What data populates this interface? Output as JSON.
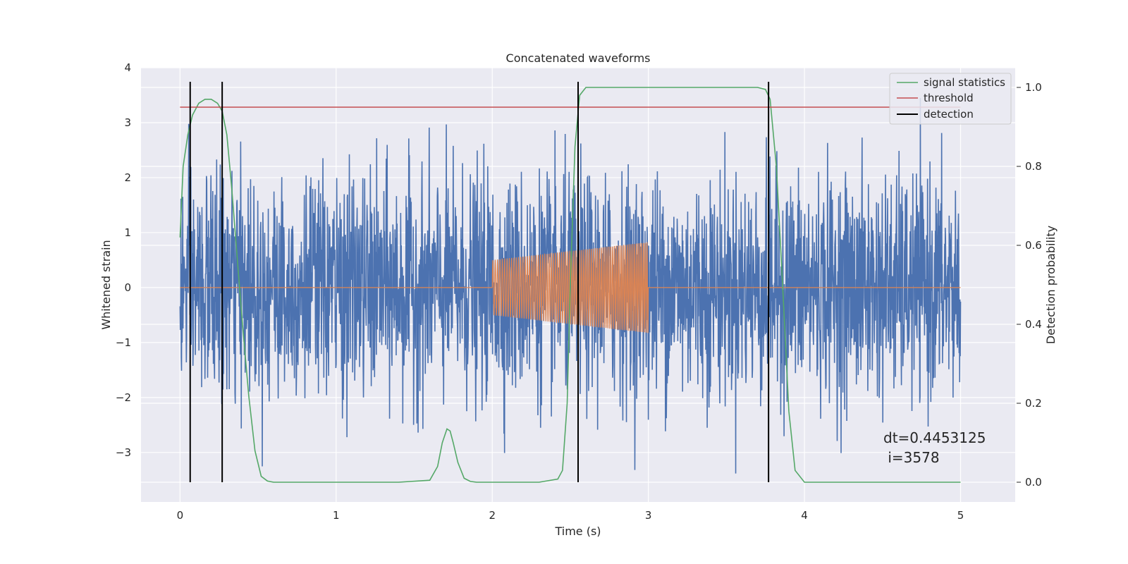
{
  "chart_data": {
    "type": "line",
    "title": "Concatenated waveforms",
    "xlabel": "Time (s)",
    "ylabel": "Whitened strain",
    "y2label": "Detection probability",
    "xlim": [
      -0.25,
      5.35
    ],
    "ylim": [
      -3.9,
      4.0
    ],
    "y2lim": [
      -0.05,
      1.05
    ],
    "x_ticks": [
      "0",
      "1",
      "2",
      "3",
      "4",
      "5"
    ],
    "y_ticks": [
      "−3",
      "−2",
      "−1",
      "0",
      "1",
      "2",
      "3",
      "4"
    ],
    "y2_ticks": [
      "0.0",
      "0.2",
      "0.4",
      "0.6",
      "0.8",
      "1.0"
    ],
    "grid": true,
    "legend_position": "top-right",
    "colors": {
      "noise": "#4c72b0",
      "injection": "#dd8452",
      "signal_statistics": "#55a868",
      "threshold": "#c44e52",
      "detection": "#000000",
      "background": "#eaeaf2",
      "grid": "#ffffff"
    },
    "series": [
      {
        "name": "",
        "axis": "left",
        "kind": "whitened noise",
        "x_range": [
          0,
          5
        ],
        "typical_amplitude": 1.0,
        "peak_max": 3.45,
        "peak_min": -3.6
      },
      {
        "name": "",
        "axis": "left",
        "kind": "injected chirp",
        "x_range": [
          2,
          3
        ],
        "start_amplitude": 0.5,
        "end_amplitude": 0.83
      },
      {
        "name": "signal statistics",
        "axis": "right",
        "x": [
          0.0,
          0.02,
          0.05,
          0.08,
          0.12,
          0.16,
          0.2,
          0.24,
          0.27,
          0.3,
          0.33,
          0.36,
          0.4,
          0.44,
          0.48,
          0.52,
          0.56,
          0.6,
          1.0,
          1.4,
          1.6,
          1.65,
          1.68,
          1.71,
          1.73,
          1.75,
          1.78,
          1.82,
          1.86,
          1.9,
          2.0,
          2.3,
          2.42,
          2.45,
          2.48,
          2.5,
          2.53,
          2.56,
          2.6,
          2.7,
          3.0,
          3.5,
          3.7,
          3.75,
          3.78,
          3.82,
          3.86,
          3.9,
          3.94,
          4.0,
          4.5,
          5.0
        ],
        "y": [
          0.62,
          0.8,
          0.88,
          0.93,
          0.96,
          0.97,
          0.97,
          0.96,
          0.94,
          0.88,
          0.75,
          0.6,
          0.4,
          0.22,
          0.08,
          0.015,
          0.003,
          0.0,
          0.0,
          0.0,
          0.005,
          0.04,
          0.1,
          0.135,
          0.13,
          0.1,
          0.05,
          0.01,
          0.002,
          0.0,
          0.0,
          0.0,
          0.008,
          0.03,
          0.2,
          0.5,
          0.85,
          0.98,
          1.0,
          1.0,
          1.0,
          1.0,
          1.0,
          0.995,
          0.97,
          0.8,
          0.5,
          0.18,
          0.03,
          0.0,
          0.0,
          0.0
        ]
      },
      {
        "name": "threshold",
        "axis": "right",
        "x": [
          0,
          5
        ],
        "y": [
          0.95,
          0.95
        ]
      },
      {
        "name": "detection",
        "axis": "right",
        "x": [
          0.065,
          0.27,
          2.55,
          3.77
        ],
        "y_range": [
          0,
          1.0
        ]
      }
    ],
    "annotation": {
      "line1": "dt=0.4453125",
      "line2": " i=3578"
    }
  }
}
